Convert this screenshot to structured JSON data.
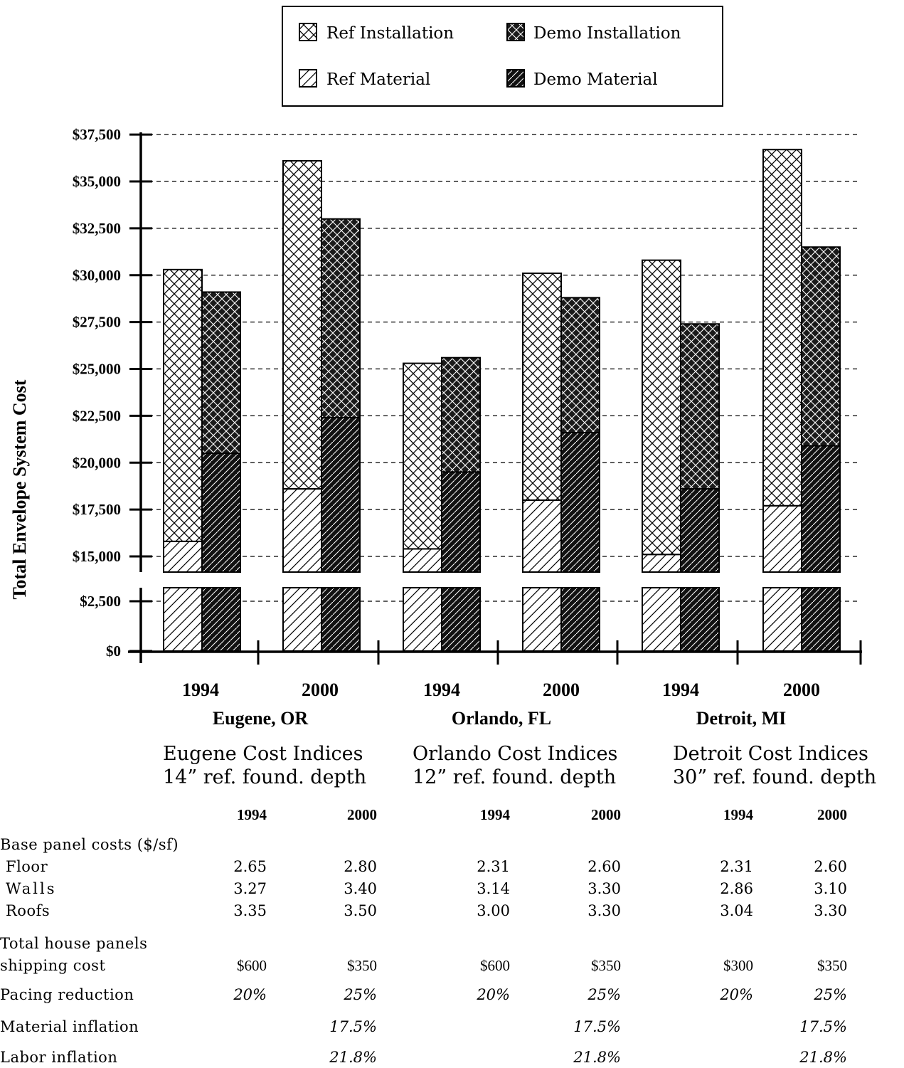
{
  "chart_data": {
    "type": "bar",
    "stacked": true,
    "broken_axis": true,
    "ylabel": "Total Envelope System Cost",
    "yticks": [
      "$0",
      "$2,500",
      "$15,000",
      "$17,500",
      "$20,000",
      "$22,500",
      "$25,000",
      "$27,500",
      "$30,000",
      "$32,500",
      "$35,000",
      "$37,500"
    ],
    "legend": {
      "position": "top-center",
      "entries": [
        {
          "label": "Ref Installation",
          "key": "ref_install"
        },
        {
          "label": "Demo Installation",
          "key": "demo_install"
        },
        {
          "label": "Ref Material",
          "key": "ref_material"
        },
        {
          "label": "Demo Material",
          "key": "demo_material"
        }
      ]
    },
    "grid": "dashed horizontal",
    "groups": [
      {
        "city": "Eugene, OR",
        "bars": [
          {
            "year": "1994",
            "ref_material": 15800,
            "ref_total": 30300,
            "demo_material": 20500,
            "demo_total": 29100
          },
          {
            "year": "2000",
            "ref_material": 18600,
            "ref_total": 36100,
            "demo_material": 22400,
            "demo_total": 33000
          }
        ]
      },
      {
        "city": "Orlando, FL",
        "bars": [
          {
            "year": "1994",
            "ref_material": 15400,
            "ref_total": 25300,
            "demo_material": 19500,
            "demo_total": 25600
          },
          {
            "year": "2000",
            "ref_material": 18000,
            "ref_total": 30100,
            "demo_material": 21600,
            "demo_total": 28800
          }
        ]
      },
      {
        "city": "Detroit, MI",
        "bars": [
          {
            "year": "1994",
            "ref_material": 15100,
            "ref_total": 30800,
            "demo_material": 18600,
            "demo_total": 27400
          },
          {
            "year": "2000",
            "ref_material": 17700,
            "ref_total": 36700,
            "demo_material": 20900,
            "demo_total": 31500
          }
        ]
      }
    ]
  },
  "table": {
    "groups": [
      {
        "title": "Eugene Cost Indices",
        "subtitle": "14” ref. found. depth"
      },
      {
        "title": "Orlando Cost Indices",
        "subtitle": "12” ref. found. depth"
      },
      {
        "title": "Detroit Cost Indices",
        "subtitle": "30” ref. found. depth"
      }
    ],
    "years": [
      "1994",
      "2000",
      "1994",
      "2000",
      "1994",
      "2000"
    ],
    "section_label": "Base panel costs ($/sf)",
    "rows": [
      {
        "label": "Floor",
        "values": [
          "2.65",
          "2.80",
          "2.31",
          "2.60",
          "2.31",
          "2.60"
        ]
      },
      {
        "label": "Walls",
        "values": [
          "3.27",
          "3.40",
          "3.14",
          "3.30",
          "2.86",
          "3.10"
        ]
      },
      {
        "label": "Roofs",
        "values": [
          "3.35",
          "3.50",
          "3.00",
          "3.30",
          "3.04",
          "3.30"
        ]
      }
    ],
    "shipping_label_1": "Total house panels",
    "shipping_label_2": "shipping cost",
    "shipping": [
      "$600",
      "$350",
      "$600",
      "$350",
      "$300",
      "$350"
    ],
    "pacing_label": "Pacing reduction",
    "pacing": [
      "20%",
      "25%",
      "20%",
      "25%",
      "20%",
      "25%"
    ],
    "material_label": "Material inflation",
    "material": [
      "",
      "17.5%",
      "",
      "17.5%",
      "",
      "17.5%"
    ],
    "labor_label": "Labor inflation",
    "labor": [
      "",
      "21.8%",
      "",
      "21.8%",
      "",
      "21.8%"
    ]
  }
}
